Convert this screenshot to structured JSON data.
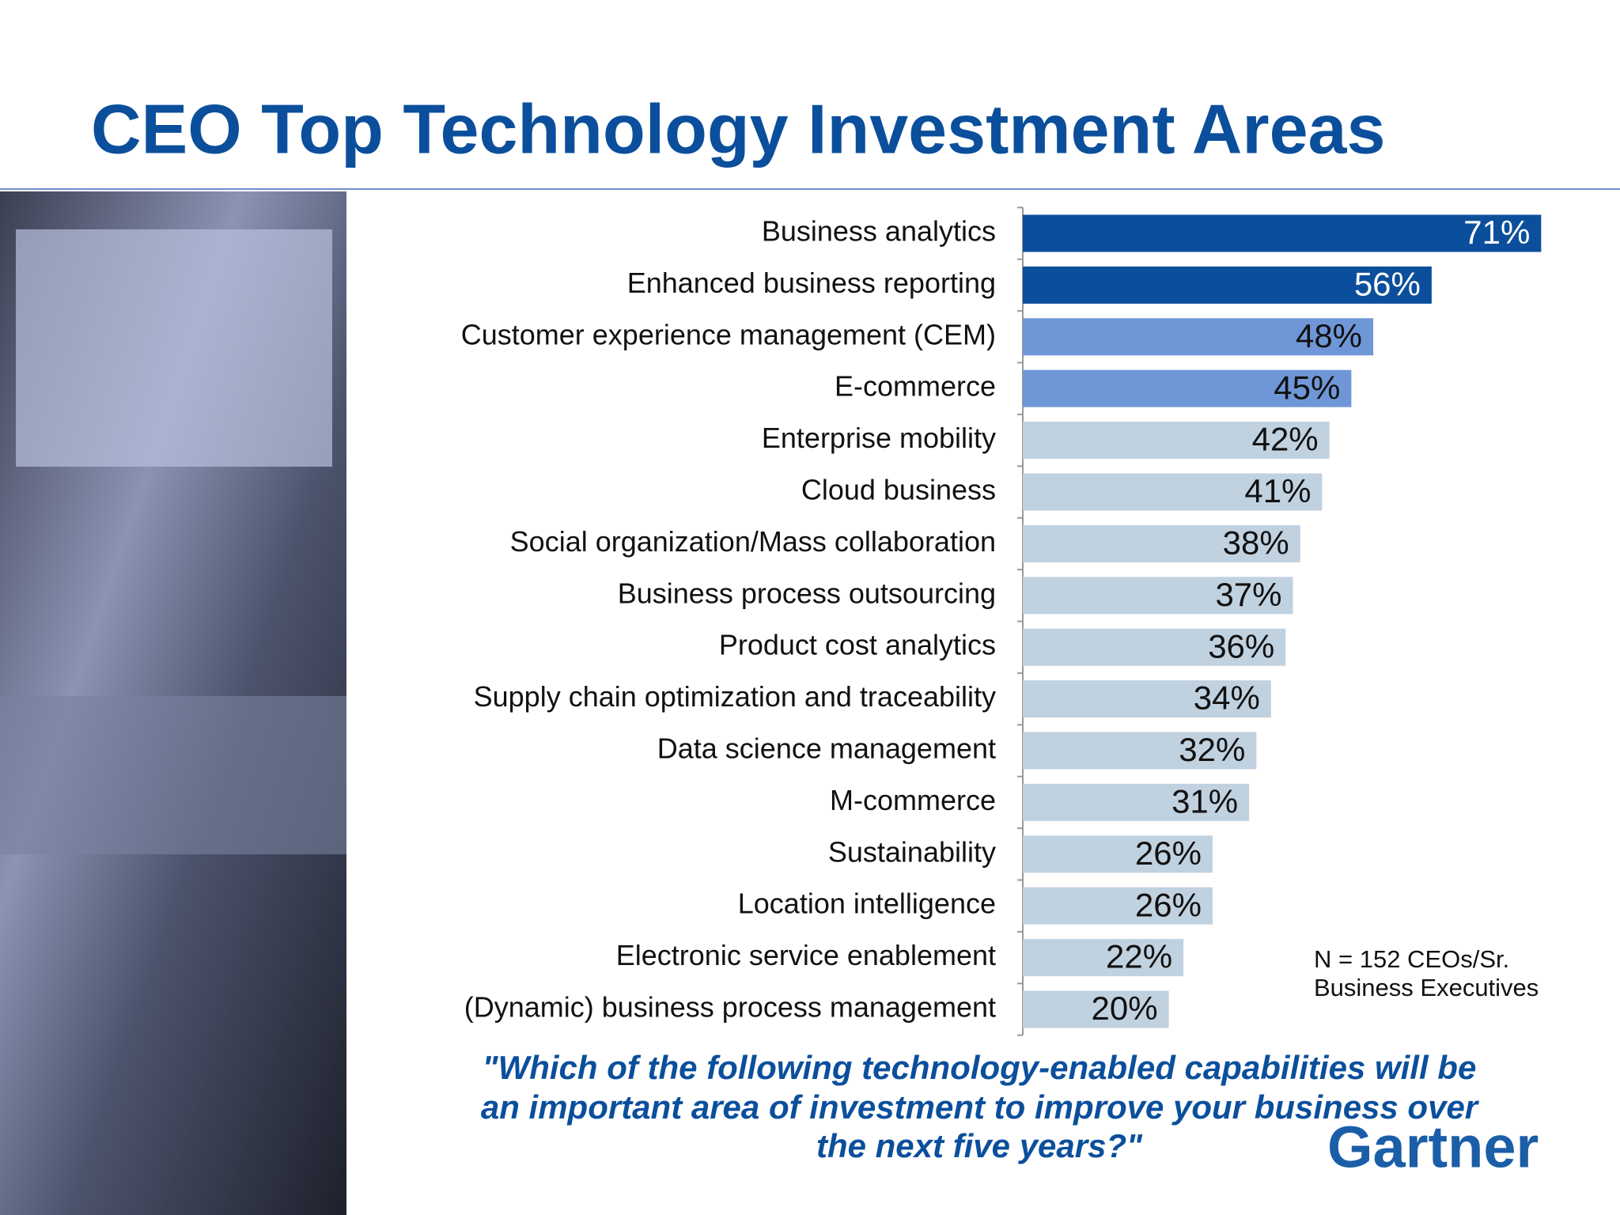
{
  "chart_data": {
    "type": "bar",
    "orientation": "horizontal",
    "title": "CEO Top Technology Investment Areas",
    "categories": [
      "Business analytics",
      "Enhanced business reporting",
      "Customer experience management (CEM)",
      "E-commerce",
      "Enterprise mobility",
      "Cloud business",
      "Social organization/Mass collaboration",
      "Business process outsourcing",
      "Product cost analytics",
      "Supply chain optimization and traceability",
      "Data science management",
      "M-commerce",
      "Sustainability",
      "Location intelligence",
      "Electronic service enablement",
      "(Dynamic) business process management"
    ],
    "values": [
      71,
      56,
      48,
      45,
      42,
      41,
      38,
      37,
      36,
      34,
      32,
      31,
      26,
      26,
      22,
      20
    ],
    "value_labels": [
      "71%",
      "56%",
      "48%",
      "45%",
      "42%",
      "41%",
      "38%",
      "37%",
      "36%",
      "34%",
      "32%",
      "31%",
      "26%",
      "26%",
      "22%",
      "20%"
    ],
    "colors": [
      "#0b4f9c",
      "#0b4f9c",
      "#6f97d7",
      "#6f97d7",
      "#c0d1e0",
      "#c0d1e0",
      "#c0d1e0",
      "#c0d1e0",
      "#c0d1e0",
      "#c0d1e0",
      "#c0d1e0",
      "#c0d1e0",
      "#c0d1e0",
      "#c0d1e0",
      "#c0d1e0",
      "#c0d1e0"
    ],
    "note": [
      "N = 152 CEOs/Sr.",
      "Business Executives"
    ],
    "question": [
      "\"Which of the following technology-enabled capabilities will be",
      "an important area of investment to improve your business over",
      "the next five years?\""
    ],
    "logo": "Gartner"
  }
}
